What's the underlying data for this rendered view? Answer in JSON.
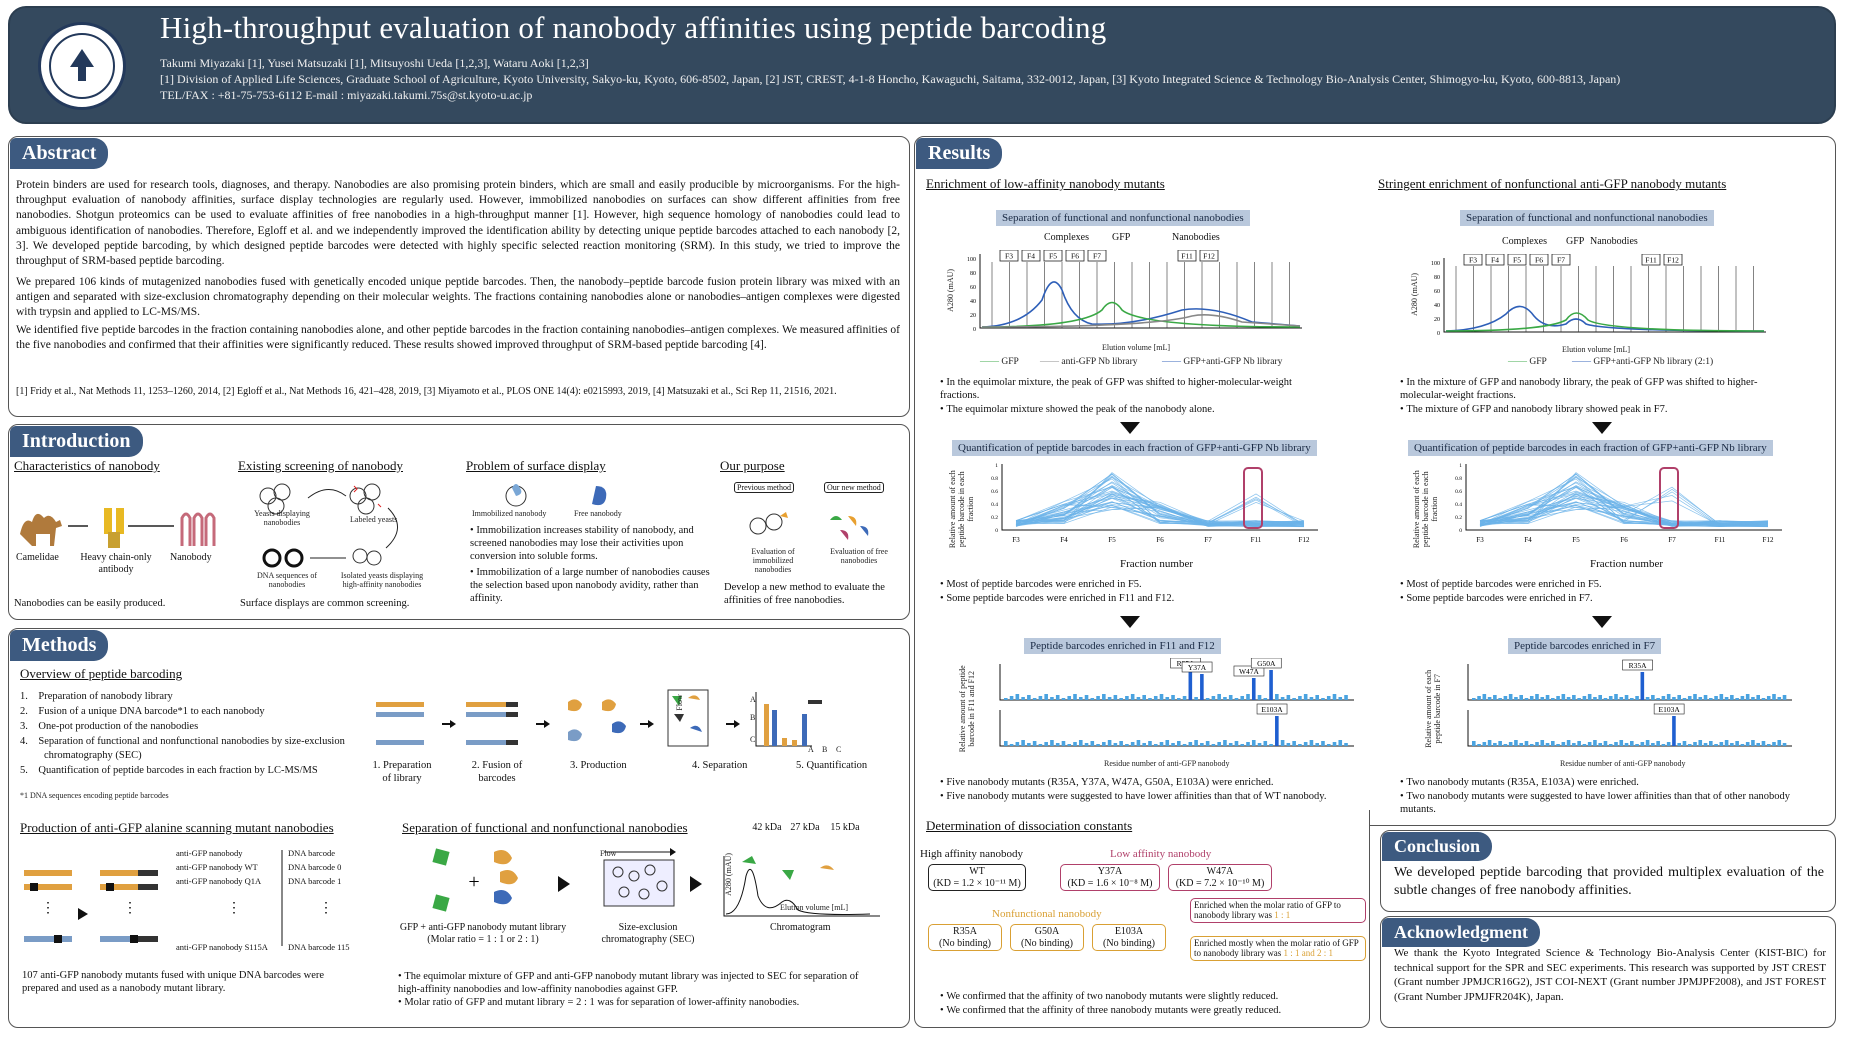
{
  "header": {
    "title": "High-throughput  evaluation of nanobody affinities using peptide barcoding",
    "authors": "Takumi  Miyazaki  [1],  Yusei Matsuzaki [1],   Mitsuyoshi Ueda [1,2,3],   Wataru Aoki [1,2,3]",
    "affiliations": "[1] Division of Applied Life  Sciences, Graduate School of Agriculture, Kyoto University, Sakyo-ku, Kyoto, 606-8502,   Japan, [2] JST,  CREST,   4-1-8  Honcho, Kawaguchi,  Saitama, 332-0012,   Japan, [3] Kyoto Integrated Science & Technology Bio-Analysis Center,  Shimogyo-ku,  Kyoto, 600-8813,   Japan)",
    "contact": "TEL/FAX  : +81-75-753-6112          E-mail   : miyazaki.takumi.75s@st.kyoto-u.ac.jp"
  },
  "abstract": {
    "heading": "Abstract",
    "p1": "Protein binders are used for research tools, diagnoses, and therapy. Nanobodies are also promising protein binders, which are small and easily producible by microorganisms. For the high-throughput evaluation of nanobody affinities, surface display technologies are regularly used. However, immobilized nanobodies on surfaces can show different affinities from free nanobodies. Shotgun proteomics can be used to evaluate affinities of free nanobodies in a high-throughput manner [1]. However, high sequence homology of nanobodies could lead to ambiguous identification of nanobodies. Therefore, Egloff et al. and we independently improved the identification ability by detecting unique peptide barcodes attached to each nanobody [2, 3]. We developed peptide barcoding, by which designed peptide barcodes were detected with highly specific selected reaction monitoring (SRM).  In this study, we tried to improve the throughput of SRM-based peptide barcoding.",
    "p2": "We prepared 106 kinds of mutagenized nanobodies fused with genetically encoded unique peptide barcodes. Then, the nanobody–peptide barcode fusion protein library was mixed with an antigen and separated with size-exclusion chromatography depending on their molecular weights. The fractions containing nanobodies alone or nanobodies–antigen complexes were digested with trypsin and applied to LC-MS/MS.",
    "p3": "We identified five peptide barcodes in the fraction containing nanobodies alone, and other peptide barcodes in the fraction containing nanobodies–antigen complexes. We measured affinities of the five nanobodies and confirmed that their affinities were significantly reduced. These results showed improved throughput of SRM-based peptide barcoding [4].",
    "refs": "[1] Fridy et al., Nat Methods 11, 1253–1260, 2014, [2] Egloff et al., Nat Methods 16, 421–428, 2019, [3] Miyamoto et al., PLOS ONE 14(4): e0215993, 2019, [4] Matsuzaki et al., Sci Rep 11, 21516, 2021."
  },
  "introduction": {
    "heading": "Introduction",
    "sub1": "Characteristics of nanobody",
    "sub2": "Existing  screening of nanobody",
    "sub3": "Problem of surface display",
    "sub4": "Our purpose",
    "lbl_camelidae": "Camelidae",
    "lbl_heavy": "Heavy chain-only antibody",
    "lbl_nanobody": "Nanobody",
    "lbl_yeasts": "Yeasts displaying nanobodies",
    "lbl_labeled": "Labeled yeasts",
    "lbl_dna": "DNA sequences of nanobodies",
    "lbl_isolated": "Isolated yeasts displaying high-affinity nanobodies",
    "lbl_immob": "Immobilized nanobody",
    "lbl_free": "Free nanobody",
    "lbl_prev": "Previous method",
    "lbl_new": "Our new method",
    "lbl_eval_immob": "Evaluation of immobilized nanobodies",
    "lbl_eval_free": "Evaluation of free nanobodies",
    "cap1": "Nanobodies can be easily produced.",
    "cap2": "Surface displays are common screening.",
    "bullet1": "Immobilization increases stability of nanobody, and screened nanobodies may lose their activities upon conversion into soluble forms.",
    "bullet2": "Immobilization of a large number of nanobodies causes the selection based upon nanobody avidity, rather than affinity.",
    "cap4": "Develop a new method to evaluate the affinities of free nanobodies."
  },
  "methods": {
    "heading": "Methods",
    "sub1": "Overview of peptide barcoding",
    "steps": [
      "Preparation of nanobody library",
      "Fusion of a unique DNA barcode*1 to each nanobody",
      "One-pot production of the nanobodies",
      "Separation of functional and nonfunctional nanobodies by size-exclusion chromatography (SEC)",
      "Quantification of peptide barcodes in each fraction by LC-MS/MS"
    ],
    "footnote": "*1 DNA sequences encoding peptide barcodes",
    "step_labels": [
      "1. Preparation of library",
      "2. Fusion of barcodes",
      "3. Production",
      "4. Separation",
      "5. Quantification"
    ],
    "flow": "Flow",
    "abc": [
      "A",
      "B",
      "C"
    ],
    "sub2": "Production of anti-GFP alanine scanning mutant nanobodies",
    "table_rows": [
      {
        "name": "anti-GFP nanobody",
        "barcode": "DNA barcode"
      },
      {
        "name": "anti-GFP nanobody WT",
        "barcode": "DNA barcode 0"
      },
      {
        "name": "anti-GFP nanobody Q1A",
        "barcode": "DNA barcode 1"
      },
      {
        "name": "anti-GFP nanobody S115A",
        "barcode": "DNA barcode 115"
      }
    ],
    "mut_caption": "107 anti-GFP nanobody mutants fused with unique DNA barcodes were prepared and used as a nanobody mutant library.",
    "sub3": "Separation of functional and nonfunctional nanobodies",
    "kda": [
      "42 kDa",
      "27 kDa",
      "15 kDa"
    ],
    "lbl_gfp_mix": "GFP + anti-GFP nanobody mutant library (Molar ratio = 1 : 1 or 2 : 1)",
    "lbl_sec": "Size-exclusion chromatography (SEC)",
    "lbl_chrom": "Chromatogram",
    "lbl_a280": "A280 (mAU)",
    "lbl_elution": "Elution volume [mL]",
    "sep_b1": "The equimolar mixture of GFP and anti-GFP nanobody mutant library was injected to SEC for separation of high-affinity nanobodies and low-affinity nanobodies against GFP.",
    "sep_b2": "Molar ratio of GFP and mutant library = 2 : 1 was for separation of lower-affinity nanobodies."
  },
  "results": {
    "heading": "Results",
    "left_sub": "Enrichment of low-affinity nanobody mutants",
    "right_sub": "Stringent enrichment of nonfunctional anti-GFP nanobody mutants",
    "sep_cap": "Separation of functional and nonfunctional nanobodies",
    "lbl_complexes": "Complexes",
    "lbl_gfp": "GFP",
    "lbl_nanobodies": "Nanobodies",
    "fractions": [
      "F3",
      "F4",
      "F5",
      "F6",
      "F7",
      "F11",
      "F12"
    ],
    "a280": "A280 (mAU)",
    "elution": "Elution volume [mL]",
    "legend_left": [
      "GFP",
      "anti-GFP Nb library",
      "GFP+anti-GFP Nb library"
    ],
    "legend_right": [
      "GFP",
      "GFP+anti-GFP Nb library (2:1)"
    ],
    "left_b1": "In the equimolar mixture, the peak of GFP was shifted to higher-molecular-weight  fractions.",
    "left_b2": "The equimolar mixture  showed the peak of the nanobody alone.",
    "right_b1": "In the mixture of GFP and nanobody library, the peak of GFP was shifted to higher-molecular-weight   fractions.",
    "right_b2": "The mixture of GFP and nanobody library showed peak in F7.",
    "quant_cap": "Quantification of peptide barcodes in each fraction of GFP+anti-GFP Nb library",
    "quant_ylabel": "Relative amount of each peptide barcode in each fraction",
    "fraction_number": "Fraction number",
    "left_b3": "Most of peptide barcodes were enriched in F5.",
    "left_b4": "Some peptide barcodes were enriched in F11 and F12.",
    "right_b3": "Most of peptide barcodes were enriched in F5.",
    "right_b4": "Some peptide barcodes were enriched in F7.",
    "enrich_left_cap": "Peptide barcodes enriched in F11 and F12",
    "enrich_right_cap": "Peptide barcodes enriched in F7",
    "enrich_left_ylabel": "Relative amount of peptide barcode in F11 and F12",
    "enrich_right_ylabel": "Relative amount of each peptide barcode in F7",
    "residue_label": "Residue number of anti-GFP nanobody",
    "mut_left": [
      "R35A",
      "Y37A",
      "W47A",
      "G50A",
      "E103A"
    ],
    "mut_right": [
      "R35A",
      "E103A"
    ],
    "left_b5": "Five nanobody mutants (R35A, Y37A, W47A, G50A, E103A) were enriched.",
    "left_b6": "Five nanobody mutants were suggested to have lower affinities than that of WT nanobody.",
    "right_b5": "Two nanobody mutants (R35A, E103A) were enriched.",
    "right_b6": "Two nanobody mutants were suggested to have lower affinities than that of other nanobody mutants.",
    "dissoc_sub": "Determination  of  dissociation  constants",
    "high_aff": "High affinity nanobody",
    "low_aff": "Low affinity nanobody",
    "nonfunc": "Nonfunctional nanobody",
    "wt": "WT",
    "wt_kd": "(KD = 1.2 × 10⁻¹¹ M)",
    "y37a": "Y37A",
    "y37a_kd": "(KD = 1.6 × 10⁻⁸ M)",
    "w47a": "W47A",
    "w47a_kd": "(KD = 7.2 × 10⁻¹⁰ M)",
    "r35a": "R35A",
    "g50a": "G50A",
    "e103a": "E103A",
    "no_binding": "(No binding)",
    "enriched_11": "Enriched when the molar ratio of GFP to nanobody library was",
    "ratio_11": "1 : 1",
    "enriched_mostly": "Enriched mostly when the molar ratio of GFP to nanobody library was",
    "ratio_both": "1 : 1 and 2 : 1",
    "dissoc_b1": "We confirmed that the affinity of two nanobody mutants were slightly reduced.",
    "dissoc_b2": "We confirmed that the affinity of three nanobody mutants were greatly reduced."
  },
  "conclusion": {
    "heading": "Conclusion",
    "text": "We developed peptide barcoding that provided multiplex evaluation of the subtle changes of free nanobody affinities."
  },
  "acknowledgment": {
    "heading": "Acknowledgment",
    "text": "We thank the Kyoto Integrated Science & Technology Bio-Analysis Center (KIST-BIC) for technical support for the SPR and SEC experiments. This research was supported by JST CREST (Grant number JPMJCR16G2), JST COI-NEXT (Grant number JPMJPF2008), and JST FOREST (Grant Number JPMJFR204K), Japan."
  },
  "colors": {
    "header_bg": "#34495e",
    "section_head": "#3d5a80",
    "caption_bg": "#b9c8dc",
    "gfp_green": "#3aa845",
    "complex_blue": "#2e5fb8",
    "bar_blue": "#2a7fd4",
    "highlight": "#b0406a"
  }
}
